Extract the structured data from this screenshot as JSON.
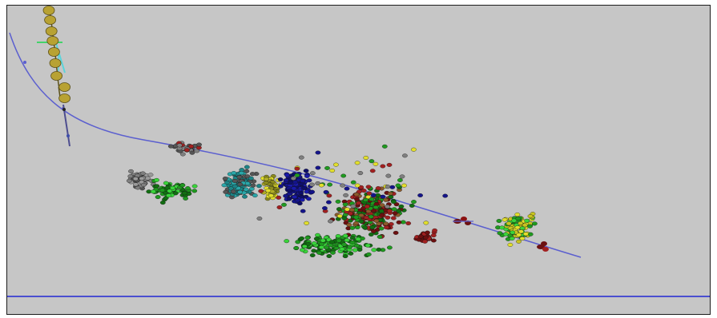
{
  "viewport": {
    "background": "#c6c6c6",
    "border_color": "#1c1c1c",
    "description_icon": "3d-molecular-scene"
  },
  "scene": {
    "trajectory_line_color": "#5b5fcf",
    "floor_line_color": "#4a4fd0",
    "chain_bead_color": "#b8a233",
    "gizmo_color": "#43d36a",
    "cluster_palette": {
      "gray": "#7f7f7f",
      "dark_gray": "#555555",
      "green": "#1f9a1f",
      "dark_green": "#116e11",
      "teal": "#2aa6a8",
      "olive": "#8a8a1e",
      "yellow": "#e2df2c",
      "navy": "#14148a",
      "red": "#a22020",
      "dark_red": "#6c0f0f",
      "brown": "#8b5a2b",
      "lime": "#39d43a",
      "black": "#202020"
    }
  }
}
